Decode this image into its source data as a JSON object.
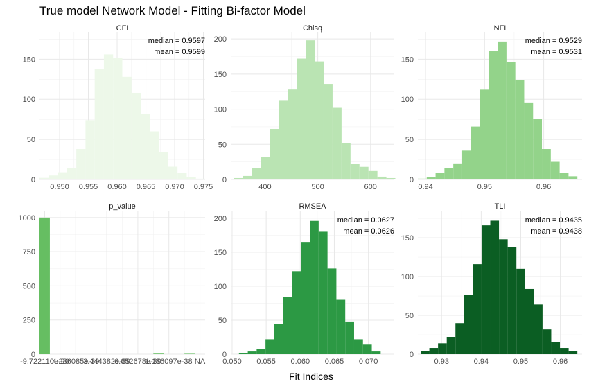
{
  "title": "True model Network Model - Fitting Bi-factor Model",
  "xlabel": "Fit Indices",
  "chart_data": [
    {
      "type": "bar",
      "panel": "CFI",
      "title": "CFI",
      "color": "#edf8e9",
      "xlim": [
        0.9465,
        0.9753
      ],
      "ylim": [
        0,
        184
      ],
      "xticks": [
        0.95,
        0.955,
        0.96,
        0.965,
        0.97,
        0.975
      ],
      "xtick_labels": [
        "0.950",
        "0.955",
        "0.960",
        "0.965",
        "0.970",
        "0.975"
      ],
      "yticks": [
        0,
        50,
        100,
        150
      ],
      "ytick_labels": [
        "0",
        "50",
        "100",
        "150"
      ],
      "bin_edges": [
        0.9465,
        0.9481,
        0.9497,
        0.9513,
        0.9529,
        0.9545,
        0.9561,
        0.9577,
        0.9593,
        0.9609,
        0.9625,
        0.9641,
        0.9657,
        0.9673,
        0.9689,
        0.9705,
        0.9721,
        0.9737,
        0.9753
      ],
      "values": [
        2,
        5,
        9,
        14,
        38,
        74,
        138,
        156,
        152,
        128,
        108,
        82,
        60,
        34,
        16,
        8,
        3,
        1
      ],
      "annotations": [
        "median =  0.9597",
        "mean = 0.9599"
      ]
    },
    {
      "type": "bar",
      "panel": "Chisq",
      "title": "Chisq",
      "color": "#bae4b3",
      "xlim": [
        335,
        645
      ],
      "ylim": [
        0,
        210
      ],
      "xticks": [
        400,
        500,
        600
      ],
      "xtick_labels": [
        "400",
        "500",
        "600"
      ],
      "yticks": [
        0,
        50,
        100,
        150,
        200
      ],
      "ytick_labels": [
        "0",
        "50",
        "100",
        "150",
        "200"
      ],
      "bin_edges": [
        341,
        358,
        375,
        392,
        409,
        426,
        443,
        460,
        477,
        494,
        511,
        528,
        545,
        562,
        579,
        596,
        613,
        630,
        647
      ],
      "values": [
        2,
        5,
        16,
        32,
        72,
        112,
        128,
        172,
        198,
        168,
        136,
        102,
        52,
        22,
        18,
        12,
        4,
        2
      ],
      "annotations": []
    },
    {
      "type": "bar",
      "panel": "NFI",
      "title": "NFI",
      "color": "#93d38a",
      "xlim": [
        0.9387,
        0.9665
      ],
      "ylim": [
        0,
        184
      ],
      "xticks": [
        0.94,
        0.95,
        0.96
      ],
      "xtick_labels": [
        "0.94",
        "0.95",
        "0.96"
      ],
      "yticks": [
        0,
        50,
        100,
        150
      ],
      "ytick_labels": [
        "0",
        "50",
        "100",
        "150"
      ],
      "bin_edges": [
        0.9387,
        0.9402,
        0.9417,
        0.9432,
        0.9447,
        0.9462,
        0.9477,
        0.9492,
        0.9507,
        0.9522,
        0.9537,
        0.9552,
        0.9567,
        0.9582,
        0.9597,
        0.9612,
        0.9627,
        0.9642,
        0.9657
      ],
      "values": [
        1,
        3,
        8,
        14,
        20,
        36,
        66,
        112,
        160,
        172,
        146,
        124,
        96,
        76,
        38,
        22,
        8,
        4
      ],
      "annotations": [
        "median =  0.9529",
        "mean = 0.9531"
      ]
    },
    {
      "type": "bar",
      "panel": "p_value",
      "title": "p_value",
      "color": "#66be62",
      "xlim": [
        -0.5,
        15.5
      ],
      "ylim": [
        0,
        1045
      ],
      "xticks": [
        0,
        3,
        6,
        9,
        12,
        15
      ],
      "xtick_labels": [
        "-9.722110e-20",
        "4.236085e-39",
        "3.444382e-89",
        "6.652678e-39",
        "1.186097e-38",
        "NA"
      ],
      "yticks": [
        0,
        250,
        500,
        750,
        1000
      ],
      "ytick_labels": [
        "0",
        "250",
        "500",
        "750",
        "1000"
      ],
      "bin_edges": [
        -0.5,
        0.5,
        1.5,
        2.5,
        3.5,
        4.5,
        5.5,
        6.5,
        7.5,
        8.5,
        9.5,
        10.5,
        11.5,
        12.5,
        13.5,
        14.5,
        15.5
      ],
      "values": [
        1000,
        0,
        0,
        0,
        0,
        0,
        0,
        0,
        0,
        0,
        0,
        4,
        0,
        0,
        3,
        0
      ],
      "annotations": []
    },
    {
      "type": "bar",
      "panel": "RMSEA",
      "title": "RMSEA",
      "color": "#2c9944",
      "xlim": [
        0.0498,
        0.0738
      ],
      "ylim": [
        0,
        210
      ],
      "xticks": [
        0.05,
        0.055,
        0.06,
        0.065,
        0.07
      ],
      "xtick_labels": [
        "0.050",
        "0.055",
        "0.060",
        "0.065",
        "0.070"
      ],
      "yticks": [
        0,
        50,
        100,
        150,
        200
      ],
      "ytick_labels": [
        "0",
        "50",
        "100",
        "150",
        "200"
      ],
      "bin_edges": [
        0.051,
        0.0523,
        0.0536,
        0.0549,
        0.0562,
        0.0575,
        0.0588,
        0.0601,
        0.0614,
        0.0627,
        0.064,
        0.0653,
        0.0666,
        0.0679,
        0.0692,
        0.0705,
        0.0718
      ],
      "values": [
        2,
        4,
        8,
        22,
        44,
        84,
        122,
        165,
        196,
        180,
        126,
        80,
        48,
        22,
        14,
        4
      ],
      "annotations": [
        "median =  0.0627",
        "mean = 0.0626"
      ]
    },
    {
      "type": "bar",
      "panel": "TLI",
      "title": "TLI",
      "color": "#0b5e23",
      "xlim": [
        0.924,
        0.9655
      ],
      "ylim": [
        0,
        184
      ],
      "xticks": [
        0.93,
        0.94,
        0.95,
        0.96
      ],
      "xtick_labels": [
        "0.93",
        "0.94",
        "0.95",
        "0.96"
      ],
      "yticks": [
        0,
        50,
        100,
        150
      ],
      "ytick_labels": [
        "0",
        "50",
        "100",
        "150"
      ],
      "bin_edges": [
        0.9247,
        0.9269,
        0.9291,
        0.9313,
        0.9335,
        0.9357,
        0.9379,
        0.9401,
        0.9423,
        0.9445,
        0.9467,
        0.9489,
        0.9511,
        0.9533,
        0.9555,
        0.9577,
        0.9599,
        0.9621,
        0.9643
      ],
      "values": [
        4,
        8,
        14,
        22,
        40,
        76,
        116,
        166,
        172,
        148,
        138,
        110,
        84,
        64,
        32,
        16,
        8,
        4
      ],
      "annotations": [
        "median =  0.9435",
        "mean = 0.9438"
      ]
    }
  ]
}
